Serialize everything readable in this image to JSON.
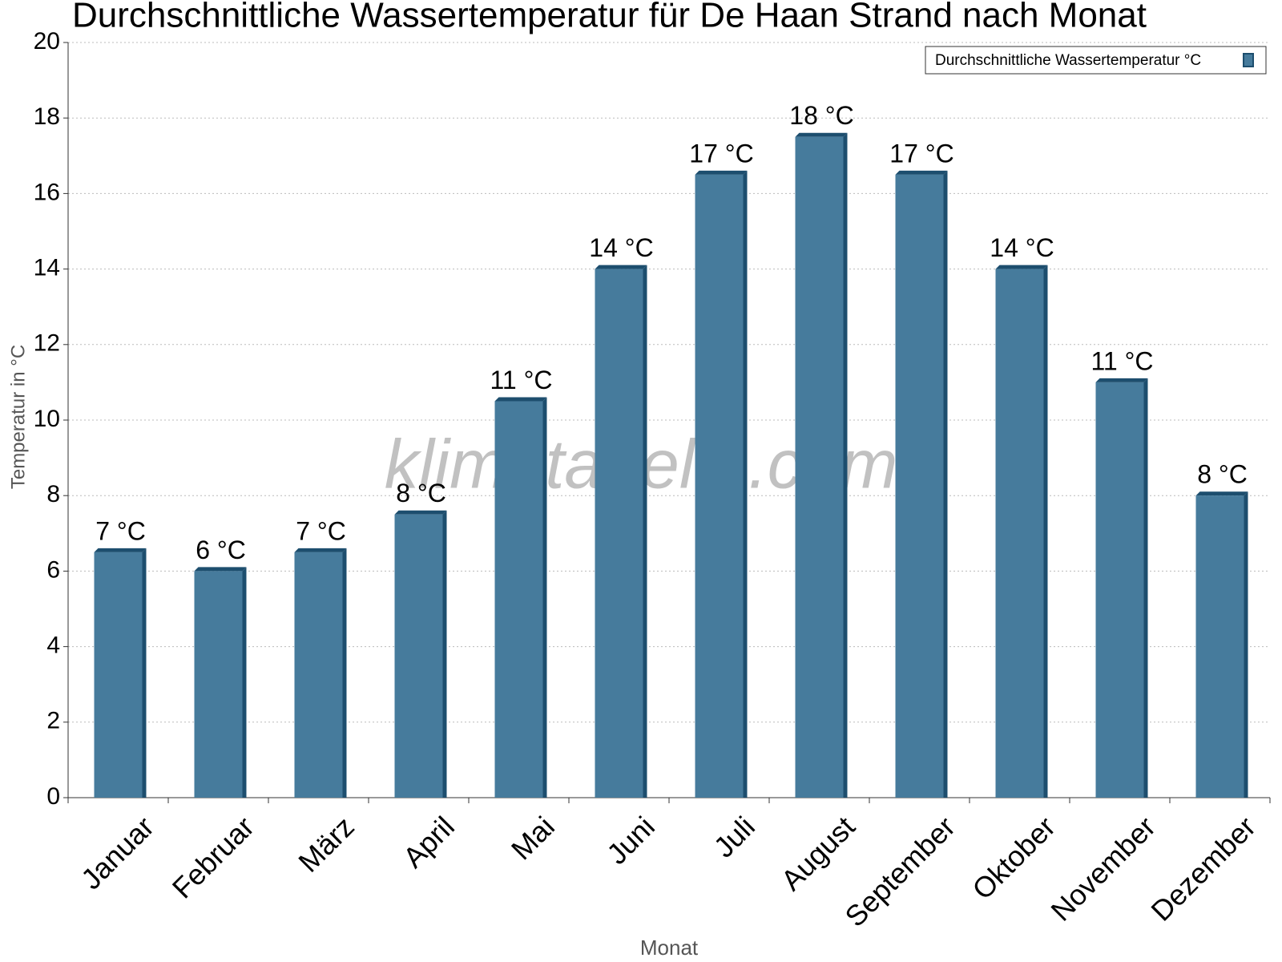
{
  "chart_data": {
    "type": "bar",
    "title": "Durchschnittliche Wassertemperatur für De Haan Strand nach Monat",
    "x_label": "Monat",
    "y_label": "Temperatur in °C",
    "watermark": "klimatabelle.com",
    "categories": [
      "Januar",
      "Februar",
      "März",
      "April",
      "Mai",
      "Juni",
      "Juli",
      "August",
      "September",
      "Oktober",
      "November",
      "Dezember"
    ],
    "series": [
      {
        "name": "Durchschnittliche Wassertemperatur °C",
        "color": "#467b9c",
        "values": [
          6.5,
          6,
          6.5,
          7.5,
          10.5,
          14,
          16.5,
          17.5,
          16.5,
          14,
          11,
          8
        ],
        "value_labels": [
          "7 °C",
          "6 °C",
          "7 °C",
          "8 °C",
          "11 °C",
          "14 °C",
          "17 °C",
          "18 °C",
          "17 °C",
          "14 °C",
          "11 °C",
          "8 °C"
        ]
      }
    ],
    "ylim": [
      0,
      20
    ],
    "yticks": [
      0,
      2,
      4,
      6,
      8,
      10,
      12,
      14,
      16,
      18,
      20
    ],
    "grid": true,
    "legend": "top-right"
  }
}
